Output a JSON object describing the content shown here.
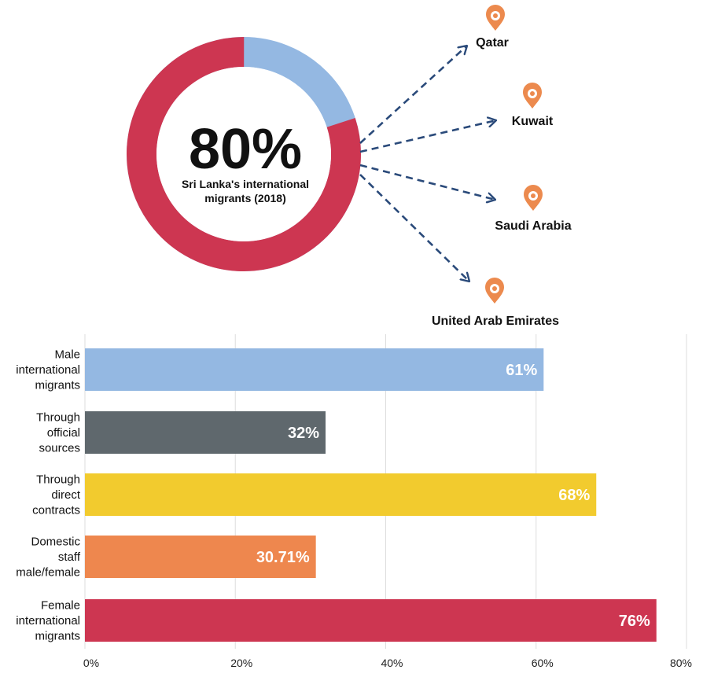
{
  "donut": {
    "big_value": "80%",
    "caption_line1": "Sri Lanka's international",
    "caption_line2": "migrants (2018)",
    "share_main": 0.8,
    "colors": {
      "main": "#cd3651",
      "rest": "#94b8e2",
      "center": "#ffffff"
    }
  },
  "destinations": [
    {
      "name": "Qatar"
    },
    {
      "name": "Kuwait"
    },
    {
      "name": "Saudi Arabia"
    },
    {
      "name": "United Arab Emirates"
    }
  ],
  "pin_color": "#ec8a4e",
  "arrow_color": "#2a4a7a",
  "chart_data": {
    "type": "bar",
    "orientation": "horizontal",
    "categories": [
      [
        "Male",
        "international",
        "migrants"
      ],
      [
        "Through",
        "official",
        "sources"
      ],
      [
        "Through",
        "direct",
        "contracts"
      ],
      [
        "Domestic",
        "staff",
        "male/female"
      ],
      [
        "Female",
        "international",
        "migrants"
      ]
    ],
    "values": [
      61,
      32,
      68,
      30.71,
      76
    ],
    "value_labels": [
      "61%",
      "32%",
      "68%",
      "30.71%",
      "76%"
    ],
    "colors": [
      "#94b8e2",
      "#5f686d",
      "#f2cb2e",
      "#ee874e",
      "#cd3651"
    ],
    "xlim": [
      0,
      80
    ],
    "xticks": [
      "0%",
      "20%",
      "40%",
      "60%",
      "80%"
    ],
    "grid": true
  }
}
